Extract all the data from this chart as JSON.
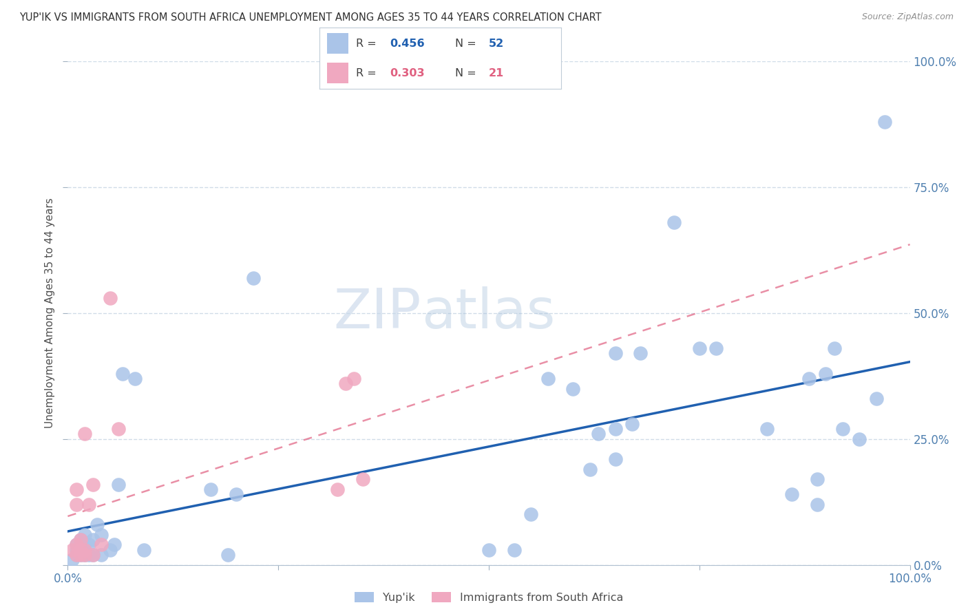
{
  "title": "YUP'IK VS IMMIGRANTS FROM SOUTH AFRICA UNEMPLOYMENT AMONG AGES 35 TO 44 YEARS CORRELATION CHART",
  "source": "Source: ZipAtlas.com",
  "ylabel": "Unemployment Among Ages 35 to 44 years",
  "watermark_zip": "ZIP",
  "watermark_atlas": "atlas",
  "legend_blue_r": "0.456",
  "legend_blue_n": "52",
  "legend_pink_r": "0.303",
  "legend_pink_n": "21",
  "legend_blue_label": "Yup'ik",
  "legend_pink_label": "Immigrants from South Africa",
  "xlim": [
    0.0,
    1.0
  ],
  "ylim": [
    0.0,
    1.0
  ],
  "xtick_labels": [
    "0.0%",
    "",
    "",
    "",
    "100.0%"
  ],
  "xtick_vals": [
    0.0,
    0.25,
    0.5,
    0.75,
    1.0
  ],
  "ytick_labels": [
    "0.0%",
    "25.0%",
    "50.0%",
    "75.0%",
    "100.0%"
  ],
  "ytick_vals": [
    0.0,
    0.25,
    0.5,
    0.75,
    1.0
  ],
  "blue_color": "#aac4e8",
  "blue_line_color": "#2060b0",
  "pink_color": "#f0a8c0",
  "pink_line_color": "#e06080",
  "title_color": "#303030",
  "axis_label_color": "#505050",
  "tick_color": "#5080b0",
  "grid_color": "#d0dce8",
  "background_color": "#ffffff",
  "blue_x": [
    0.005,
    0.01,
    0.01,
    0.01,
    0.015,
    0.015,
    0.02,
    0.02,
    0.02,
    0.025,
    0.025,
    0.03,
    0.03,
    0.035,
    0.04,
    0.04,
    0.05,
    0.055,
    0.06,
    0.065,
    0.08,
    0.09,
    0.17,
    0.19,
    0.2,
    0.22,
    0.5,
    0.53,
    0.55,
    0.57,
    0.6,
    0.62,
    0.63,
    0.65,
    0.65,
    0.65,
    0.67,
    0.68,
    0.72,
    0.75,
    0.77,
    0.83,
    0.86,
    0.88,
    0.89,
    0.89,
    0.9,
    0.91,
    0.92,
    0.94,
    0.96,
    0.97
  ],
  "blue_y": [
    0.01,
    0.02,
    0.03,
    0.04,
    0.02,
    0.05,
    0.02,
    0.03,
    0.06,
    0.02,
    0.04,
    0.02,
    0.05,
    0.08,
    0.02,
    0.06,
    0.03,
    0.04,
    0.16,
    0.38,
    0.37,
    0.03,
    0.15,
    0.02,
    0.14,
    0.57,
    0.03,
    0.03,
    0.1,
    0.37,
    0.35,
    0.19,
    0.26,
    0.21,
    0.27,
    0.42,
    0.28,
    0.42,
    0.68,
    0.43,
    0.43,
    0.27,
    0.14,
    0.37,
    0.12,
    0.17,
    0.38,
    0.43,
    0.27,
    0.25,
    0.33,
    0.88
  ],
  "pink_x": [
    0.005,
    0.01,
    0.01,
    0.01,
    0.01,
    0.015,
    0.015,
    0.015,
    0.02,
    0.02,
    0.02,
    0.025,
    0.03,
    0.03,
    0.04,
    0.05,
    0.06,
    0.32,
    0.33,
    0.34,
    0.35
  ],
  "pink_y": [
    0.03,
    0.02,
    0.04,
    0.12,
    0.15,
    0.02,
    0.03,
    0.05,
    0.02,
    0.03,
    0.26,
    0.12,
    0.02,
    0.16,
    0.04,
    0.53,
    0.27,
    0.15,
    0.36,
    0.37,
    0.17
  ]
}
